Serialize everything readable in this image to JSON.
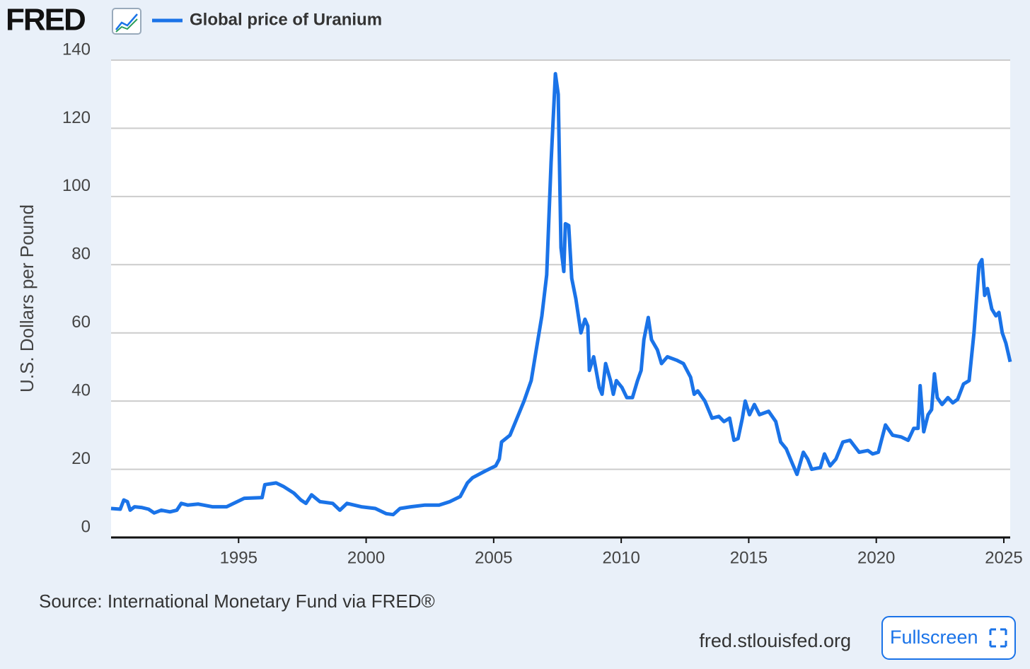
{
  "header": {
    "logo": "FRED"
  },
  "chart_data": {
    "type": "line",
    "y_axis_label": "U.S. Dollars per Pound",
    "xlim": [
      1990,
      2025.25
    ],
    "xticks": [
      1995,
      2000,
      2005,
      2010,
      2015,
      2020,
      2025
    ],
    "ylim": [
      0,
      140
    ],
    "yticks": [
      0,
      20,
      40,
      60,
      80,
      100,
      120,
      140
    ],
    "grid": true,
    "x": [
      1990.0,
      1990.36,
      1990.5,
      1990.64,
      1990.75,
      1990.92,
      1991.19,
      1991.47,
      1991.69,
      1991.97,
      1992.31,
      1992.58,
      1992.75,
      1993.0,
      1993.42,
      1993.97,
      1994.53,
      1994.81,
      1995.22,
      1995.92,
      1996.03,
      1996.47,
      1996.75,
      1997.17,
      1997.44,
      1997.64,
      1997.86,
      1998.19,
      1998.69,
      1998.97,
      1999.25,
      1999.81,
      2000.36,
      2000.78,
      2001.06,
      2001.33,
      2001.75,
      2002.31,
      2002.86,
      2003.28,
      2003.69,
      2003.97,
      2004.17,
      2004.67,
      2005.08,
      2005.22,
      2005.31,
      2005.64,
      2005.86,
      2006.19,
      2006.47,
      2006.69,
      2006.89,
      2007.08,
      2007.25,
      2007.42,
      2007.53,
      2007.64,
      2007.75,
      2007.81,
      2007.94,
      2008.06,
      2008.22,
      2008.42,
      2008.58,
      2008.69,
      2008.75,
      2008.92,
      2009.14,
      2009.25,
      2009.39,
      2009.58,
      2009.69,
      2009.81,
      2010.03,
      2010.22,
      2010.44,
      2010.64,
      2010.78,
      2010.89,
      2011.06,
      2011.19,
      2011.42,
      2011.58,
      2011.81,
      2012.17,
      2012.44,
      2012.72,
      2012.86,
      2013.0,
      2013.28,
      2013.56,
      2013.83,
      2014.03,
      2014.25,
      2014.42,
      2014.58,
      2014.75,
      2014.86,
      2015.03,
      2015.22,
      2015.42,
      2015.78,
      2016.06,
      2016.25,
      2016.47,
      2016.69,
      2016.89,
      2017.14,
      2017.31,
      2017.47,
      2017.81,
      2017.97,
      2018.19,
      2018.42,
      2018.69,
      2018.97,
      2019.33,
      2019.67,
      2019.86,
      2020.08,
      2020.36,
      2020.64,
      2020.97,
      2021.25,
      2021.47,
      2021.64,
      2021.72,
      2021.86,
      2022.03,
      2022.17,
      2022.28,
      2022.39,
      2022.58,
      2022.81,
      2023.0,
      2023.19,
      2023.42,
      2023.64,
      2023.83,
      2024.03,
      2024.14,
      2024.25,
      2024.36,
      2024.53,
      2024.69,
      2024.81,
      2024.94,
      2025.08,
      2025.25
    ],
    "series": [
      {
        "name": "Global price of Uranium",
        "color": "#1a73e8",
        "values": [
          8.5,
          8.3,
          11,
          10.5,
          8,
          9,
          8.8,
          8.3,
          7.2,
          8,
          7.5,
          8,
          10,
          9.5,
          9.8,
          9,
          9,
          10,
          11.5,
          11.7,
          15.5,
          16,
          15,
          13,
          11,
          10,
          12.5,
          10.5,
          10,
          8,
          10,
          9,
          8.5,
          7,
          6.7,
          8.5,
          9,
          9.5,
          9.5,
          10.5,
          12,
          16,
          17.5,
          19.5,
          21,
          23,
          28,
          30,
          34,
          40,
          46,
          56,
          65,
          77,
          110,
          136,
          130,
          85,
          78,
          92,
          91.5,
          76,
          70,
          60,
          64,
          62,
          49,
          53,
          44,
          42,
          51,
          46,
          42,
          46,
          44,
          41,
          41,
          46,
          49,
          58,
          64.5,
          58,
          55,
          51,
          53,
          52,
          51,
          47,
          42,
          43,
          40,
          35,
          35.5,
          34,
          35,
          28.5,
          29,
          35,
          40,
          36,
          39,
          36,
          37,
          34,
          28,
          26,
          22,
          18.5,
          25,
          23,
          20,
          20.5,
          24.5,
          21,
          23,
          28,
          28.5,
          25,
          25.5,
          24.5,
          25,
          33,
          30,
          29.5,
          28.5,
          32,
          32,
          44.5,
          31,
          36,
          37.5,
          48,
          41,
          39,
          41,
          39.5,
          40.5,
          45,
          46,
          60,
          80,
          81.5,
          71,
          73,
          67,
          65,
          66,
          60,
          57,
          51.5
        ]
      }
    ]
  },
  "footer": {
    "source": "Source: International Monetary Fund via FRED®",
    "site": "fred.stlouisfed.org",
    "button": "Fullscreen"
  }
}
